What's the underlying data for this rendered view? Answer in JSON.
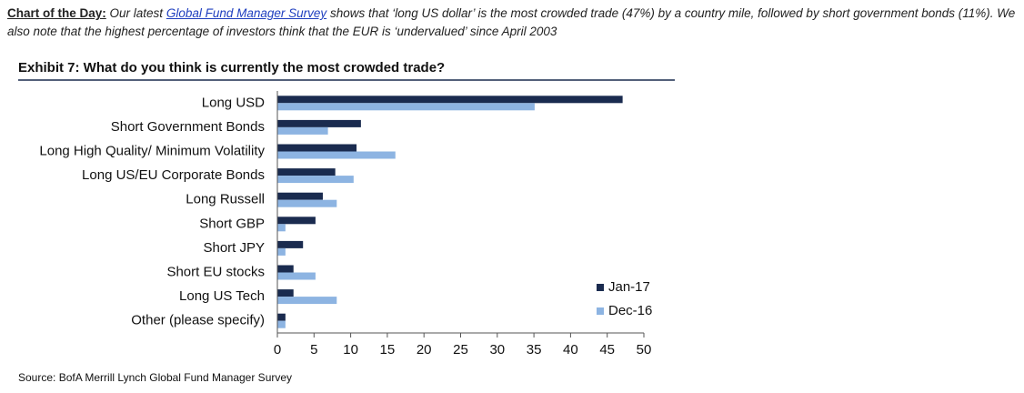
{
  "intro": {
    "label": "Chart of the Day:",
    "text_before": "Our latest",
    "link": "Global Fund Manager Survey",
    "text_after": "shows that ‘long US dollar’ is the most crowded trade (47%) by a country mile, followed by short government bonds (11%). We also note that the highest percentage of investors think that the EUR is ‘undervalued’ since April 2003"
  },
  "chart_data": {
    "type": "hbar",
    "title": "Exhibit 7: What do you think is currently the most crowded trade?",
    "categories": [
      "Long USD",
      "Short Government Bonds",
      "Long High Quality/ Minimum Volatility",
      "Long US/EU Corporate Bonds",
      "Long Russell",
      "Short GBP",
      "Short JPY",
      "Short EU stocks",
      "Long US Tech",
      "Other (please specify)"
    ],
    "series": [
      {
        "name": "Jan-17",
        "color": "#1a2b4f",
        "values": [
          47.1,
          11.4,
          10.8,
          7.9,
          6.2,
          5.2,
          3.5,
          2.2,
          2.2,
          1.1
        ]
      },
      {
        "name": "Dec-16",
        "color": "#8db4e2",
        "values": [
          35.1,
          6.9,
          16.1,
          10.4,
          8.1,
          1.1,
          1.1,
          5.2,
          8.1,
          1.1
        ]
      }
    ],
    "xlim": [
      0,
      50
    ],
    "xticks": [
      0,
      5,
      10,
      15,
      20,
      25,
      30,
      35,
      40,
      45,
      50
    ],
    "legend": "lower-right",
    "source": "Source: BofA Merrill Lynch Global Fund Manager Survey"
  }
}
